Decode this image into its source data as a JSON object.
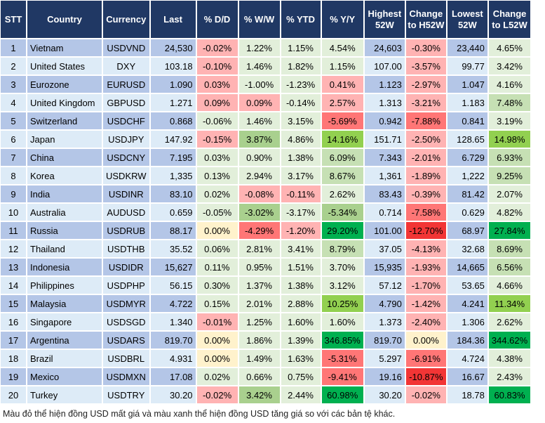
{
  "headers": [
    "STT",
    "Country",
    "Currency",
    "Last",
    "% D/D",
    "% W/W",
    "% YTD",
    "% Y/Y",
    "Highest 52W",
    "Change to H52W",
    "Lowest 52W",
    "Change to L52W"
  ],
  "color_scale": {
    "r1": "#FFB3B3",
    "r2": "#FF7676",
    "r3": "#F23535",
    "g1": "#E2EFDA",
    "g2": "#C6E0B4",
    "g3": "#A9D08E",
    "g4": "#92D050",
    "g5": "#00B050",
    "y": "#FFF2CC",
    "header": "#203864",
    "row_odd": "#B4C6E7",
    "row_even": "#DDEBF7"
  },
  "rows": [
    {
      "stt": "1",
      "country": "Vietnam",
      "currency": "USDVND",
      "last": "24,530",
      "dd": "-0.02%",
      "ww": "1.22%",
      "ytd": "1.15%",
      "yy": "4.54%",
      "h52": "24,603",
      "ch": "-0.30%",
      "l52": "23,440",
      "cl": "4.65%",
      "colors": [
        "r1",
        "g1",
        "g1",
        "g1",
        "r1",
        "g1"
      ]
    },
    {
      "stt": "2",
      "country": "United States",
      "currency": "DXY",
      "last": "103.18",
      "dd": "-0.10%",
      "ww": "1.46%",
      "ytd": "1.82%",
      "yy": "1.15%",
      "h52": "107.00",
      "ch": "-3.57%",
      "l52": "99.77",
      "cl": "3.42%",
      "colors": [
        "r1",
        "g1",
        "g1",
        "g1",
        "r1",
        "g1"
      ]
    },
    {
      "stt": "3",
      "country": "Eurozone",
      "currency": "EURUSD",
      "last": "1.090",
      "dd": "0.03%",
      "ww": "-1.00%",
      "ytd": "-1.23%",
      "yy": "0.41%",
      "h52": "1.123",
      "ch": "-2.97%",
      "l52": "1.047",
      "cl": "4.16%",
      "colors": [
        "r1",
        "g1",
        "g1",
        "r1",
        "r1",
        "g1"
      ]
    },
    {
      "stt": "4",
      "country": "United Kingdom",
      "currency": "GBPUSD",
      "last": "1.271",
      "dd": "0.09%",
      "ww": "0.09%",
      "ytd": "-0.14%",
      "yy": "2.57%",
      "h52": "1.313",
      "ch": "-3.21%",
      "l52": "1.183",
      "cl": "7.48%",
      "colors": [
        "r1",
        "r1",
        "g1",
        "r1",
        "r1",
        "g2"
      ]
    },
    {
      "stt": "5",
      "country": "Switzerland",
      "currency": "USDCHF",
      "last": "0.868",
      "dd": "-0.06%",
      "ww": "1.46%",
      "ytd": "3.15%",
      "yy": "-5.69%",
      "h52": "0.942",
      "ch": "-7.88%",
      "l52": "0.841",
      "cl": "3.19%",
      "colors": [
        "g1",
        "g1",
        "g1",
        "r2",
        "r2",
        "g1"
      ]
    },
    {
      "stt": "6",
      "country": "Japan",
      "currency": "USDJPY",
      "last": "147.92",
      "dd": "-0.15%",
      "ww": "3.87%",
      "ytd": "4.86%",
      "yy": "14.16%",
      "h52": "151.71",
      "ch": "-2.50%",
      "l52": "128.65",
      "cl": "14.98%",
      "colors": [
        "r1",
        "g3",
        "g1",
        "g4",
        "r1",
        "g4"
      ]
    },
    {
      "stt": "7",
      "country": "China",
      "currency": "USDCNY",
      "last": "7.195",
      "dd": "0.03%",
      "ww": "0.90%",
      "ytd": "1.38%",
      "yy": "6.09%",
      "h52": "7.343",
      "ch": "-2.01%",
      "l52": "6.729",
      "cl": "6.93%",
      "colors": [
        "g1",
        "g1",
        "g1",
        "g2",
        "r1",
        "g2"
      ]
    },
    {
      "stt": "8",
      "country": "Korea",
      "currency": "USDKRW",
      "last": "1,335",
      "dd": "0.13%",
      "ww": "2.94%",
      "ytd": "3.17%",
      "yy": "8.67%",
      "h52": "1,361",
      "ch": "-1.89%",
      "l52": "1,222",
      "cl": "9.25%",
      "colors": [
        "g1",
        "g1",
        "g1",
        "g2",
        "r1",
        "g2"
      ]
    },
    {
      "stt": "9",
      "country": "India",
      "currency": "USDINR",
      "last": "83.10",
      "dd": "0.02%",
      "ww": "-0.08%",
      "ytd": "-0.11%",
      "yy": "2.62%",
      "h52": "83.43",
      "ch": "-0.39%",
      "l52": "81.42",
      "cl": "2.07%",
      "colors": [
        "g1",
        "r1",
        "r1",
        "g1",
        "r1",
        "g1"
      ]
    },
    {
      "stt": "10",
      "country": "Australia",
      "currency": "AUDUSD",
      "last": "0.659",
      "dd": "-0.05%",
      "ww": "-3.02%",
      "ytd": "-3.17%",
      "yy": "-5.34%",
      "h52": "0.714",
      "ch": "-7.58%",
      "l52": "0.629",
      "cl": "4.82%",
      "colors": [
        "g1",
        "g3",
        "g1",
        "g3",
        "r2",
        "g1"
      ]
    },
    {
      "stt": "11",
      "country": "Russia",
      "currency": "USDRUB",
      "last": "88.17",
      "dd": "0.00%",
      "ww": "-4.29%",
      "ytd": "-1.20%",
      "yy": "29.20%",
      "h52": "101.00",
      "ch": "-12.70%",
      "l52": "68.97",
      "cl": "27.84%",
      "colors": [
        "y",
        "r2",
        "r1",
        "g5",
        "r3",
        "g5"
      ]
    },
    {
      "stt": "12",
      "country": "Thailand",
      "currency": "USDTHB",
      "last": "35.52",
      "dd": "0.06%",
      "ww": "2.81%",
      "ytd": "3.41%",
      "yy": "8.79%",
      "h52": "37.05",
      "ch": "-4.13%",
      "l52": "32.68",
      "cl": "8.69%",
      "colors": [
        "g1",
        "g1",
        "g1",
        "g2",
        "r1",
        "g2"
      ]
    },
    {
      "stt": "13",
      "country": "Indonesia",
      "currency": "USDIDR",
      "last": "15,627",
      "dd": "0.11%",
      "ww": "0.95%",
      "ytd": "1.51%",
      "yy": "3.70%",
      "h52": "15,935",
      "ch": "-1.93%",
      "l52": "14,665",
      "cl": "6.56%",
      "colors": [
        "g1",
        "g1",
        "g1",
        "g1",
        "r1",
        "g2"
      ]
    },
    {
      "stt": "14",
      "country": "Philippines",
      "currency": "USDPHP",
      "last": "56.15",
      "dd": "0.30%",
      "ww": "1.37%",
      "ytd": "1.38%",
      "yy": "3.12%",
      "h52": "57.12",
      "ch": "-1.70%",
      "l52": "53.65",
      "cl": "4.66%",
      "colors": [
        "g1",
        "g1",
        "g1",
        "g1",
        "r1",
        "g1"
      ]
    },
    {
      "stt": "15",
      "country": "Malaysia",
      "currency": "USDMYR",
      "last": "4.722",
      "dd": "0.15%",
      "ww": "2.01%",
      "ytd": "2.88%",
      "yy": "10.25%",
      "h52": "4.790",
      "ch": "-1.42%",
      "l52": "4.241",
      "cl": "11.34%",
      "colors": [
        "g1",
        "g1",
        "g1",
        "g4",
        "r1",
        "g4"
      ]
    },
    {
      "stt": "16",
      "country": "Singapore",
      "currency": "USDSGD",
      "last": "1.340",
      "dd": "-0.01%",
      "ww": "1.25%",
      "ytd": "1.60%",
      "yy": "1.60%",
      "h52": "1.373",
      "ch": "-2.40%",
      "l52": "1.306",
      "cl": "2.62%",
      "colors": [
        "r1",
        "g1",
        "g1",
        "g1",
        "r1",
        "g1"
      ]
    },
    {
      "stt": "17",
      "country": "Argentina",
      "currency": "USDARS",
      "last": "819.70",
      "dd": "0.00%",
      "ww": "1.86%",
      "ytd": "1.39%",
      "yy": "346.85%",
      "h52": "819.70",
      "ch": "0.00%",
      "l52": "184.36",
      "cl": "344.62%",
      "colors": [
        "y",
        "g1",
        "g1",
        "g5",
        "y",
        "g5"
      ]
    },
    {
      "stt": "18",
      "country": "Brazil",
      "currency": "USDBRL",
      "last": "4.931",
      "dd": "0.00%",
      "ww": "1.49%",
      "ytd": "1.63%",
      "yy": "-5.31%",
      "h52": "5.297",
      "ch": "-6.91%",
      "l52": "4.724",
      "cl": "4.38%",
      "colors": [
        "y",
        "g1",
        "g1",
        "r2",
        "r2",
        "g1"
      ]
    },
    {
      "stt": "19",
      "country": "Mexico",
      "currency": "USDMXN",
      "last": "17.08",
      "dd": "0.02%",
      "ww": "0.66%",
      "ytd": "0.75%",
      "yy": "-9.41%",
      "h52": "19.16",
      "ch": "-10.87%",
      "l52": "16.67",
      "cl": "2.43%",
      "colors": [
        "g1",
        "g1",
        "g1",
        "r2",
        "r3",
        "g1"
      ]
    },
    {
      "stt": "20",
      "country": "Turkey",
      "currency": "USDTRY",
      "last": "30.20",
      "dd": "-0.02%",
      "ww": "3.42%",
      "ytd": "2.44%",
      "yy": "60.98%",
      "h52": "30.20",
      "ch": "-0.02%",
      "l52": "18.78",
      "cl": "60.83%",
      "colors": [
        "r1",
        "g3",
        "g1",
        "g5",
        "r1",
        "g5"
      ]
    }
  ],
  "footnote": "Màu đỏ thể hiện đồng USD mất giá và màu xanh thể hiện đồng USD tăng giá so với các bản tệ khác."
}
